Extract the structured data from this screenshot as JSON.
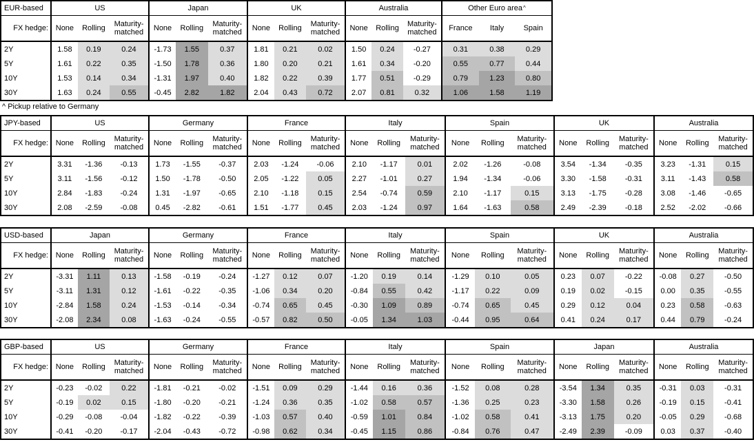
{
  "footnote": "^ Pickup relative to Germany",
  "labels": {
    "fx_hedge": "FX hedge:"
  },
  "row_labels": [
    "2Y",
    "5Y",
    "10Y",
    "30Y"
  ],
  "heatmap": {
    "description": "hedged-column cell shading by value: 0 to 0.5 light, 0.5 to 1.0 medium, 1.0+ dark, negative unshaded; None column never shaded",
    "colors": {
      "light": "#dcdcdc",
      "medium": "#c1c1c1",
      "dark": "#a5a5a5"
    }
  },
  "tables": [
    {
      "title": "EUR-based",
      "groups": [
        {
          "name": "US",
          "cols": [
            "None",
            "Rolling",
            "Maturity-matched"
          ],
          "rows": [
            [
              "1.58",
              "0.19",
              "0.24"
            ],
            [
              "1.61",
              "0.22",
              "0.35"
            ],
            [
              "1.53",
              "0.14",
              "0.34"
            ],
            [
              "1.63",
              "0.24",
              "0.55"
            ]
          ]
        },
        {
          "name": "Japan",
          "cols": [
            "None",
            "Rolling",
            "Maturity-matched"
          ],
          "rows": [
            [
              "-1.73",
              "1.55",
              "0.37"
            ],
            [
              "-1.50",
              "1.78",
              "0.36"
            ],
            [
              "-1.31",
              "1.97",
              "0.40"
            ],
            [
              "-0.45",
              "2.82",
              "1.82"
            ]
          ]
        },
        {
          "name": "UK",
          "cols": [
            "None",
            "Rolling",
            "Maturity-matched"
          ],
          "rows": [
            [
              "1.81",
              "0.21",
              "0.02"
            ],
            [
              "1.80",
              "0.20",
              "0.21"
            ],
            [
              "1.82",
              "0.22",
              "0.39"
            ],
            [
              "2.04",
              "0.43",
              "0.72"
            ]
          ]
        },
        {
          "name": "Australia",
          "cols": [
            "None",
            "Rolling",
            "Maturity-matched"
          ],
          "rows": [
            [
              "1.50",
              "0.24",
              "-0.27"
            ],
            [
              "1.61",
              "0.34",
              "-0.20"
            ],
            [
              "1.77",
              "0.51",
              "-0.29"
            ],
            [
              "2.07",
              "0.81",
              "0.32"
            ]
          ]
        },
        {
          "name": "Other Euro area",
          "sup": "^",
          "cols": [
            "France",
            "Italy",
            "Spain"
          ],
          "rows": [
            [
              "0.31",
              "0.38",
              "0.29"
            ],
            [
              "0.55",
              "0.77",
              "0.44"
            ],
            [
              "0.79",
              "1.23",
              "0.80"
            ],
            [
              "1.06",
              "1.58",
              "1.19"
            ]
          ]
        }
      ]
    },
    {
      "title": "JPY-based",
      "groups": [
        {
          "name": "US",
          "cols": [
            "None",
            "Rolling",
            "Maturity-matched"
          ],
          "rows": [
            [
              "3.31",
              "-1.36",
              "-0.13"
            ],
            [
              "3.11",
              "-1.56",
              "-0.12"
            ],
            [
              "2.84",
              "-1.83",
              "-0.24"
            ],
            [
              "2.08",
              "-2.59",
              "-0.08"
            ]
          ]
        },
        {
          "name": "Germany",
          "cols": [
            "None",
            "Rolling",
            "Maturity-matched"
          ],
          "rows": [
            [
              "1.73",
              "-1.55",
              "-0.37"
            ],
            [
              "1.50",
              "-1.78",
              "-0.50"
            ],
            [
              "1.31",
              "-1.97",
              "-0.65"
            ],
            [
              "0.45",
              "-2.82",
              "-0.61"
            ]
          ]
        },
        {
          "name": "France",
          "cols": [
            "None",
            "Rolling",
            "Maturity-matched"
          ],
          "rows": [
            [
              "2.03",
              "-1.24",
              "-0.06"
            ],
            [
              "2.05",
              "-1.22",
              "0.05"
            ],
            [
              "2.10",
              "-1.18",
              "0.15"
            ],
            [
              "1.51",
              "-1.77",
              "0.45"
            ]
          ]
        },
        {
          "name": "Italy",
          "cols": [
            "None",
            "Rolling",
            "Maturity-matched"
          ],
          "rows": [
            [
              "2.10",
              "-1.17",
              "0.01"
            ],
            [
              "2.27",
              "-1.01",
              "0.27"
            ],
            [
              "2.54",
              "-0.74",
              "0.59"
            ],
            [
              "2.03",
              "-1.24",
              "0.97"
            ]
          ]
        },
        {
          "name": "Spain",
          "cols": [
            "None",
            "Rolling",
            "Maturity-matched"
          ],
          "rows": [
            [
              "2.02",
              "-1.26",
              "-0.08"
            ],
            [
              "1.94",
              "-1.34",
              "-0.06"
            ],
            [
              "2.10",
              "-1.17",
              "0.15"
            ],
            [
              "1.64",
              "-1.63",
              "0.58"
            ]
          ]
        },
        {
          "name": "UK",
          "cols": [
            "None",
            "Rolling",
            "Maturity-matched"
          ],
          "rows": [
            [
              "3.54",
              "-1.34",
              "-0.35"
            ],
            [
              "3.30",
              "-1.58",
              "-0.31"
            ],
            [
              "3.13",
              "-1.75",
              "-0.28"
            ],
            [
              "2.49",
              "-2.39",
              "-0.18"
            ]
          ]
        },
        {
          "name": "Australia",
          "cols": [
            "None",
            "Rolling",
            "Maturity-matched"
          ],
          "rows": [
            [
              "3.23",
              "-1.31",
              "0.15"
            ],
            [
              "3.11",
              "-1.43",
              "0.58"
            ],
            [
              "3.08",
              "-1.46",
              "-0.65"
            ],
            [
              "2.52",
              "-2.02",
              "-0.66"
            ]
          ]
        }
      ]
    },
    {
      "title": "USD-based",
      "groups": [
        {
          "name": "Japan",
          "cols": [
            "None",
            "Rolling",
            "Maturity-matched"
          ],
          "rows": [
            [
              "-3.31",
              "1.11",
              "0.13"
            ],
            [
              "-3.11",
              "1.31",
              "0.12"
            ],
            [
              "-2.84",
              "1.58",
              "0.24"
            ],
            [
              "-2.08",
              "2.34",
              "0.08"
            ]
          ]
        },
        {
          "name": "Germany",
          "cols": [
            "None",
            "Rolling",
            "Maturity-matched"
          ],
          "rows": [
            [
              "-1.58",
              "-0.19",
              "-0.24"
            ],
            [
              "-1.61",
              "-0.22",
              "-0.35"
            ],
            [
              "-1.53",
              "-0.14",
              "-0.34"
            ],
            [
              "-1.63",
              "-0.24",
              "-0.55"
            ]
          ]
        },
        {
          "name": "France",
          "cols": [
            "None",
            "Rolling",
            "Maturity-matched"
          ],
          "rows": [
            [
              "-1.27",
              "0.12",
              "0.07"
            ],
            [
              "-1.06",
              "0.34",
              "0.20"
            ],
            [
              "-0.74",
              "0.65",
              "0.45"
            ],
            [
              "-0.57",
              "0.82",
              "0.50"
            ]
          ]
        },
        {
          "name": "Italy",
          "cols": [
            "None",
            "Rolling",
            "Maturity-matched"
          ],
          "rows": [
            [
              "-1.20",
              "0.19",
              "0.14"
            ],
            [
              "-0.84",
              "0.55",
              "0.42"
            ],
            [
              "-0.30",
              "1.09",
              "0.89"
            ],
            [
              "-0.05",
              "1.34",
              "1.03"
            ]
          ]
        },
        {
          "name": "Spain",
          "cols": [
            "None",
            "Rolling",
            "Maturity-matched"
          ],
          "rows": [
            [
              "-1.29",
              "0.10",
              "0.05"
            ],
            [
              "-1.17",
              "0.22",
              "0.09"
            ],
            [
              "-0.74",
              "0.65",
              "0.45"
            ],
            [
              "-0.44",
              "0.95",
              "0.64"
            ]
          ]
        },
        {
          "name": "UK",
          "cols": [
            "None",
            "Rolling",
            "Maturity-matched"
          ],
          "rows": [
            [
              "0.23",
              "0.07",
              "-0.22"
            ],
            [
              "0.19",
              "0.02",
              "-0.15"
            ],
            [
              "0.29",
              "0.12",
              "0.04"
            ],
            [
              "0.41",
              "0.24",
              "0.17"
            ]
          ]
        },
        {
          "name": "Australia",
          "cols": [
            "None",
            "Rolling",
            "Maturity-matched"
          ],
          "rows": [
            [
              "-0.08",
              "0.27",
              "-0.50"
            ],
            [
              "0.00",
              "0.35",
              "-0.55"
            ],
            [
              "0.23",
              "0.58",
              "-0.63"
            ],
            [
              "0.44",
              "0.79",
              "-0.24"
            ]
          ]
        }
      ]
    },
    {
      "title": "GBP-based",
      "groups": [
        {
          "name": "US",
          "cols": [
            "None",
            "Rolling",
            "Maturity-matched"
          ],
          "rows": [
            [
              "-0.23",
              "-0.02",
              "0.22"
            ],
            [
              "-0.19",
              "0.02",
              "0.15"
            ],
            [
              "-0.29",
              "-0.08",
              "-0.04"
            ],
            [
              "-0.41",
              "-0.20",
              "-0.17"
            ]
          ]
        },
        {
          "name": "Germany",
          "cols": [
            "None",
            "Rolling",
            "Maturity-matched"
          ],
          "rows": [
            [
              "-1.81",
              "-0.21",
              "-0.02"
            ],
            [
              "-1.80",
              "-0.20",
              "-0.21"
            ],
            [
              "-1.82",
              "-0.22",
              "-0.39"
            ],
            [
              "-2.04",
              "-0.43",
              "-0.72"
            ]
          ]
        },
        {
          "name": "France",
          "cols": [
            "None",
            "Rolling",
            "Maturity-matched"
          ],
          "rows": [
            [
              "-1.51",
              "0.09",
              "0.29"
            ],
            [
              "-1.24",
              "0.36",
              "0.35"
            ],
            [
              "-1.03",
              "0.57",
              "0.40"
            ],
            [
              "-0.98",
              "0.62",
              "0.34"
            ]
          ]
        },
        {
          "name": "Italy",
          "cols": [
            "None",
            "Rolling",
            "Maturity-matched"
          ],
          "rows": [
            [
              "-1.44",
              "0.16",
              "0.36"
            ],
            [
              "-1.02",
              "0.58",
              "0.57"
            ],
            [
              "-0.59",
              "1.01",
              "0.84"
            ],
            [
              "-0.45",
              "1.15",
              "0.86"
            ]
          ]
        },
        {
          "name": "Spain",
          "cols": [
            "None",
            "Rolling",
            "Maturity-matched"
          ],
          "rows": [
            [
              "-1.52",
              "0.08",
              "0.28"
            ],
            [
              "-1.36",
              "0.25",
              "0.23"
            ],
            [
              "-1.02",
              "0.58",
              "0.41"
            ],
            [
              "-0.84",
              "0.76",
              "0.47"
            ]
          ]
        },
        {
          "name": "Japan",
          "cols": [
            "None",
            "Rolling",
            "Maturity-matched"
          ],
          "rows": [
            [
              "-3.54",
              "1.34",
              "0.35"
            ],
            [
              "-3.30",
              "1.58",
              "0.26"
            ],
            [
              "-3.13",
              "1.75",
              "0.20"
            ],
            [
              "-2.49",
              "2.39",
              "-0.09"
            ]
          ]
        },
        {
          "name": "Australia",
          "cols": [
            "None",
            "Rolling",
            "Maturity-matched"
          ],
          "rows": [
            [
              "-0.31",
              "0.03",
              "-0.31"
            ],
            [
              "-0.19",
              "0.15",
              "-0.41"
            ],
            [
              "-0.05",
              "0.29",
              "-0.68"
            ],
            [
              "0.03",
              "0.37",
              "-0.40"
            ]
          ]
        }
      ]
    }
  ]
}
